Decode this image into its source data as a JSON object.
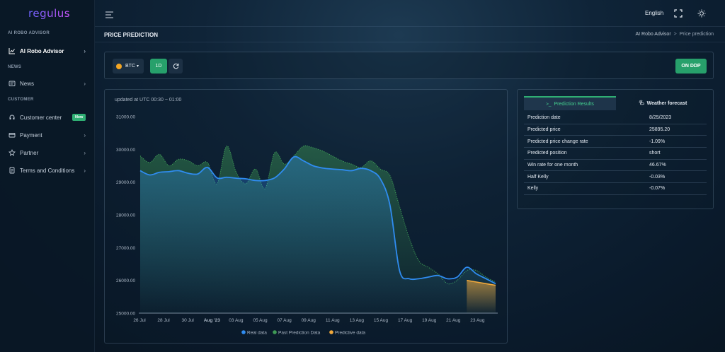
{
  "app": {
    "logo": "regulus"
  },
  "sidebar": {
    "sections": [
      {
        "label": "AI ROBO ADVISOR"
      },
      {
        "label": "NEWS"
      },
      {
        "label": "CUSTOMER"
      }
    ],
    "items": [
      {
        "label": "AI Robo Advisor",
        "icon": "chart-line-icon"
      },
      {
        "label": "News",
        "icon": "newspaper-icon"
      },
      {
        "label": "Customer center",
        "icon": "headset-icon",
        "badge": "New"
      },
      {
        "label": "Payment",
        "icon": "card-icon"
      },
      {
        "label": "Partner",
        "icon": "star-icon"
      },
      {
        "label": "Terms and Conditions",
        "icon": "document-icon"
      }
    ]
  },
  "header": {
    "language": "English"
  },
  "page": {
    "title": "PRICE PREDICTION",
    "breadcrumb": [
      "AI Robo Advisor",
      "Price prediction"
    ]
  },
  "controls": {
    "coin": "BTC",
    "interval": "1D",
    "ddp_button": "ON DDP"
  },
  "chart": {
    "updated": "updated at UTC 00:30 ~ 01:00"
  },
  "chart_data": {
    "type": "line",
    "ylim": [
      25000,
      31000
    ],
    "yticks": [
      "31000.00",
      "30000.00",
      "29000.00",
      "28000.00",
      "27000.00",
      "26000.00",
      "25000.00"
    ],
    "xticks": [
      "26 Jul",
      "28 Jul",
      "30 Jul",
      "Aug '23",
      "03 Aug",
      "05 Aug",
      "07 Aug",
      "09 Aug",
      "11 Aug",
      "13 Aug",
      "15 Aug",
      "17 Aug",
      "19 Aug",
      "21 Aug",
      "23 Aug"
    ],
    "legend": [
      "Real data",
      "Past Prediction Data",
      "Predictive data"
    ],
    "legend_position": "bottom",
    "colors": {
      "real": "#2f8cf0",
      "past": "#3e9a55",
      "predictive": "#f2a93b"
    },
    "series": [
      {
        "name": "Real data",
        "values": [
          29350,
          29220,
          29300,
          29320,
          29350,
          29270,
          29250,
          29450,
          29130,
          29150,
          29120,
          29100,
          29050,
          29050,
          29130,
          29400,
          29770,
          29650,
          29500,
          29430,
          29400,
          29380,
          29350,
          29420,
          29350,
          29100,
          28300,
          26300,
          26050,
          26050,
          26100,
          26150,
          26050,
          26100,
          26400,
          26200,
          26050,
          25900
        ]
      },
      {
        "name": "Past Prediction Data",
        "values": [
          29800,
          29600,
          29850,
          29500,
          29700,
          29650,
          29500,
          29600,
          28950,
          30100,
          29300,
          28950,
          29400,
          28800,
          29900,
          29550,
          29800,
          30100,
          30050,
          29950,
          29800,
          29650,
          29550,
          29450,
          29650,
          29400,
          29200,
          28250,
          27300,
          26600,
          26400,
          26200,
          25900,
          26000,
          26300,
          26300,
          26100,
          25950
        ]
      },
      {
        "name": "Predictive data",
        "values": [
          26000,
          25950,
          25900,
          25850
        ]
      }
    ]
  },
  "results": {
    "tabs": [
      "Prediction Results",
      "Weather forecast"
    ],
    "rows": [
      {
        "k": "Prediction date",
        "v": "8/25/2023"
      },
      {
        "k": "Predicted price",
        "v": "25895.20"
      },
      {
        "k": "Predicted price change rate",
        "v": "-1.09%"
      },
      {
        "k": "Predicted position",
        "v": "short"
      },
      {
        "k": "Win rate for one month",
        "v": "46.67%"
      },
      {
        "k": "Half Kelly",
        "v": "-0.03%"
      },
      {
        "k": "Kelly",
        "v": "-0.07%"
      }
    ]
  }
}
